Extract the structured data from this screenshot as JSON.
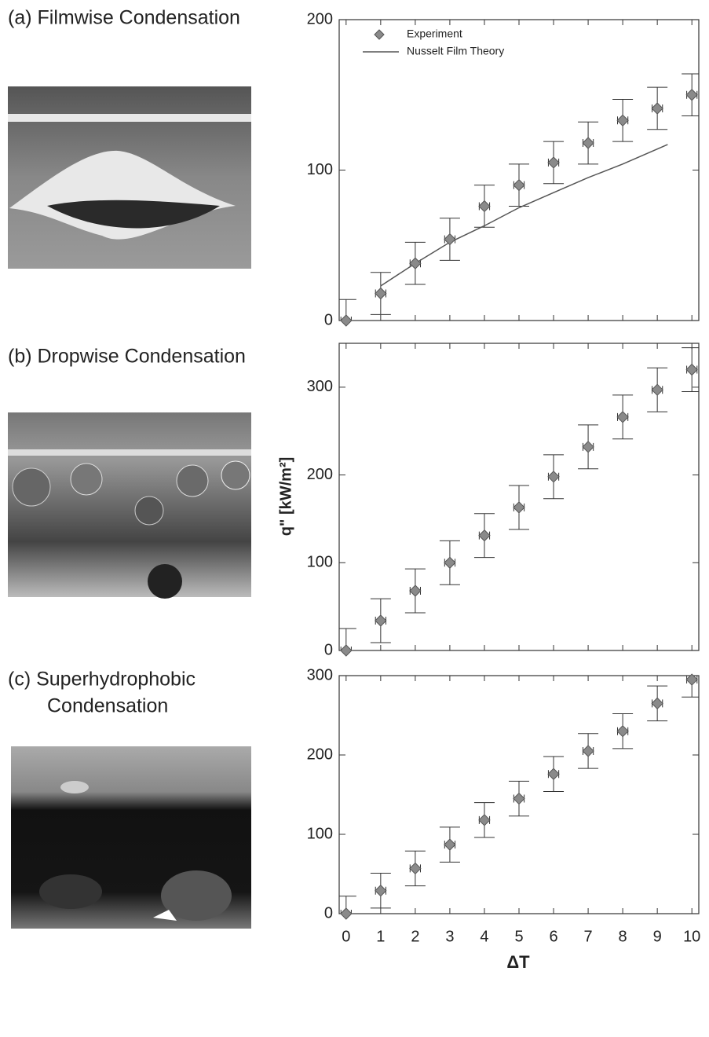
{
  "chart_data": [
    {
      "type": "scatter",
      "panel_title_lines": [
        "(a) Filmwise Condensation"
      ],
      "x": [
        0,
        1,
        2,
        3,
        4,
        5,
        6,
        7,
        8,
        9,
        10
      ],
      "series": [
        {
          "name": "Experiment",
          "color": "#8a8a8a",
          "values": [
            0,
            18,
            38,
            54,
            76,
            90,
            105,
            118,
            133,
            141,
            150
          ],
          "yerr": 14,
          "xerr": 0.15
        },
        {
          "name": "Nusselt Film Theory",
          "color": "#555555",
          "type": "line",
          "x": [
            1,
            2,
            3,
            4,
            5,
            6,
            7,
            8,
            9,
            9.3
          ],
          "values": [
            23,
            38,
            52,
            63,
            75,
            85,
            95,
            104,
            114,
            117
          ]
        }
      ],
      "xlim": [
        -0.2,
        10.2
      ],
      "xticks": [
        0,
        1,
        2,
        3,
        4,
        5,
        6,
        7,
        8,
        9,
        10
      ],
      "show_xtick_labels": false,
      "ylim": [
        0,
        200
      ],
      "yticks": [
        0,
        100,
        200
      ],
      "legend": "top-left"
    },
    {
      "type": "scatter",
      "panel_title_lines": [
        "(b) Dropwise Condensation"
      ],
      "ylabel": "q\" [kW/m²]",
      "x": [
        0,
        1,
        2,
        3,
        4,
        5,
        6,
        7,
        8,
        9,
        10
      ],
      "series": [
        {
          "name": null,
          "color": "#8a8a8a",
          "values": [
            0,
            34,
            68,
            100,
            131,
            163,
            198,
            232,
            266,
            297,
            320
          ],
          "yerr": 25,
          "xerr": 0.15
        }
      ],
      "xlim": [
        -0.2,
        10.2
      ],
      "xticks": [
        0,
        1,
        2,
        3,
        4,
        5,
        6,
        7,
        8,
        9,
        10
      ],
      "show_xtick_labels": false,
      "ylim": [
        0,
        350
      ],
      "yticks": [
        0,
        100,
        200,
        300
      ]
    },
    {
      "type": "scatter",
      "panel_title_lines": [
        "(c) Superhydrophobic",
        "Condensation"
      ],
      "xlabel": "ΔT",
      "x": [
        0,
        1,
        2,
        3,
        4,
        5,
        6,
        7,
        8,
        9,
        10
      ],
      "series": [
        {
          "name": null,
          "color": "#8a8a8a",
          "values": [
            0,
            29,
            57,
            87,
            118,
            145,
            176,
            205,
            230,
            265,
            295
          ],
          "yerr": 22,
          "xerr": 0.15
        }
      ],
      "xlim": [
        -0.2,
        10.2
      ],
      "xticks": [
        0,
        1,
        2,
        3,
        4,
        5,
        6,
        7,
        8,
        9,
        10
      ],
      "show_xtick_labels": true,
      "ylim": [
        0,
        300
      ],
      "yticks": [
        0,
        100,
        200,
        300
      ]
    }
  ]
}
